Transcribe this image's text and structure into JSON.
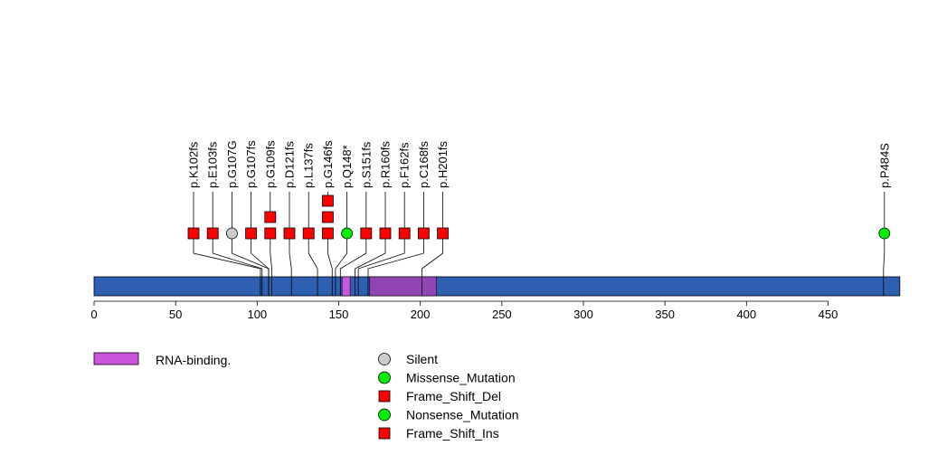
{
  "chart_data": {
    "type": "lollipop",
    "protein_length": 494,
    "x_ticks": [
      0,
      50,
      100,
      150,
      200,
      250,
      300,
      350,
      400,
      450
    ],
    "domains": [
      {
        "name": "RNA-binding.",
        "start": 152,
        "end": 157,
        "color": "#cc55dd"
      },
      {
        "name": "RNA-binding.",
        "start": 169,
        "end": 210,
        "color": "#9144b3"
      }
    ],
    "backbone_color": "#2f5fb0",
    "mutations": [
      {
        "label": "p.K102fs",
        "position": 102,
        "type": "Frame_Shift_Del",
        "count": 1
      },
      {
        "label": "p.E103fs",
        "position": 103,
        "type": "Frame_Shift_Del",
        "count": 1
      },
      {
        "label": "p.G107G",
        "position": 107,
        "type": "Silent",
        "count": 1
      },
      {
        "label": "p.G107fs",
        "position": 107,
        "type": "Frame_Shift_Del",
        "count": 1
      },
      {
        "label": "p.G109fs",
        "position": 109,
        "type": "Frame_Shift_Del",
        "count": 2
      },
      {
        "label": "p.D121fs",
        "position": 121,
        "type": "Frame_Shift_Del",
        "count": 1
      },
      {
        "label": "p.L137fs",
        "position": 137,
        "type": "Frame_Shift_Del",
        "count": 1
      },
      {
        "label": "p.G146fs",
        "position": 146,
        "type": "Frame_Shift_Del",
        "count": 3
      },
      {
        "label": "p.Q148*",
        "position": 148,
        "type": "Nonsense_Mutation",
        "count": 1
      },
      {
        "label": "p.S151fs",
        "position": 151,
        "type": "Frame_Shift_Del",
        "count": 1
      },
      {
        "label": "p.R160fs",
        "position": 160,
        "type": "Frame_Shift_Del",
        "count": 1
      },
      {
        "label": "p.F162fs",
        "position": 162,
        "type": "Frame_Shift_Del",
        "count": 1
      },
      {
        "label": "p.C168fs",
        "position": 168,
        "type": "Frame_Shift_Del",
        "count": 1
      },
      {
        "label": "p.H201fs",
        "position": 201,
        "type": "Frame_Shift_Del",
        "count": 1
      },
      {
        "label": "p.P484S",
        "position": 484,
        "type": "Missense_Mutation",
        "count": 1
      }
    ],
    "legend": {
      "domains": [
        {
          "name": "RNA-binding.",
          "color": "#cc55dd"
        }
      ],
      "mutation_types": [
        {
          "name": "Silent",
          "shape": "circle",
          "color": "#cccccc"
        },
        {
          "name": "Missense_Mutation",
          "shape": "circle",
          "color": "#00ee00"
        },
        {
          "name": "Frame_Shift_Del",
          "shape": "square",
          "color": "#ff0000"
        },
        {
          "name": "Nonsense_Mutation",
          "shape": "circle",
          "color": "#00ee00"
        },
        {
          "name": "Frame_Shift_Ins",
          "shape": "square",
          "color": "#ff0000"
        }
      ]
    }
  }
}
